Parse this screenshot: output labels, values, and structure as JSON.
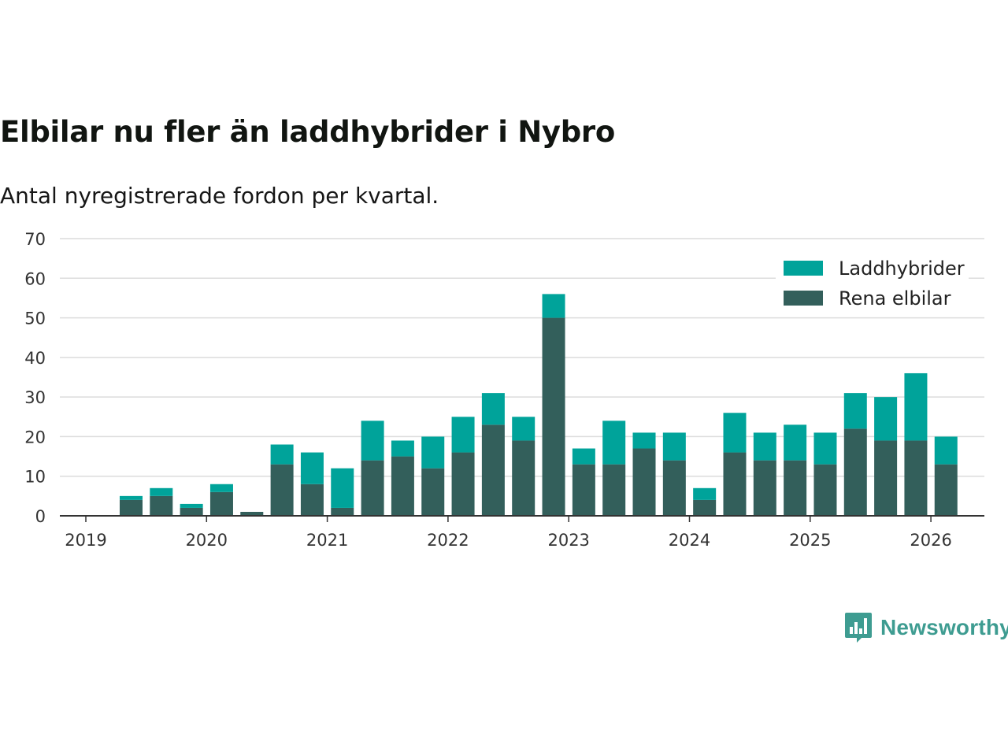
{
  "title": "Elbilar nu fler än laddhybrider i Nybro",
  "subtitle": "Antal nyregistrerade fordon per kvartal.",
  "brand": {
    "name": "Newsworthy",
    "color": "#3e9c91",
    "icon": "bar-chart-bubble-icon"
  },
  "colors": {
    "laddhybrider": "#00a39a",
    "elbilar": "#335f5b",
    "grid": "#dcdcdc",
    "axis": "#333333"
  },
  "chart_data": {
    "type": "bar",
    "stacked": true,
    "title": "Elbilar nu fler än laddhybrider i Nybro",
    "subtitle": "Antal nyregistrerade fordon per kvartal.",
    "xlabel": "",
    "ylabel": "",
    "ylim": [
      0,
      70
    ],
    "yticks": [
      0,
      10,
      20,
      30,
      40,
      50,
      60,
      70
    ],
    "xticks": [
      "2019",
      "2020",
      "2021",
      "2022",
      "2023",
      "2024",
      "2025",
      "2026"
    ],
    "grid": true,
    "legend_position": "top-right",
    "categories": [
      "2019 Q2",
      "2019 Q3",
      "2019 Q4",
      "2020 Q1",
      "2020 Q2",
      "2020 Q3",
      "2020 Q4",
      "2021 Q1",
      "2021 Q2",
      "2021 Q3",
      "2021 Q4",
      "2022 Q1",
      "2022 Q2",
      "2022 Q3",
      "2022 Q4",
      "2023 Q1",
      "2023 Q2",
      "2023 Q3",
      "2023 Q4",
      "2024 Q1",
      "2024 Q2",
      "2024 Q3",
      "2024 Q4",
      "2025 Q1",
      "2025 Q2",
      "2025 Q3",
      "2025 Q4",
      "2026 Q1"
    ],
    "series": [
      {
        "name": "Rena elbilar",
        "color": "#335f5b",
        "values": [
          4,
          5,
          2,
          6,
          1,
          13,
          8,
          2,
          14,
          15,
          12,
          16,
          23,
          19,
          50,
          13,
          13,
          17,
          14,
          4,
          16,
          14,
          14,
          13,
          22,
          19,
          19,
          13
        ]
      },
      {
        "name": "Laddhybrider",
        "color": "#00a39a",
        "values": [
          1,
          2,
          1,
          2,
          0,
          5,
          8,
          10,
          10,
          4,
          8,
          9,
          8,
          6,
          6,
          4,
          11,
          4,
          7,
          3,
          10,
          7,
          9,
          8,
          9,
          11,
          17,
          7
        ]
      }
    ],
    "legend": [
      "Laddhybrider",
      "Rena elbilar"
    ]
  }
}
